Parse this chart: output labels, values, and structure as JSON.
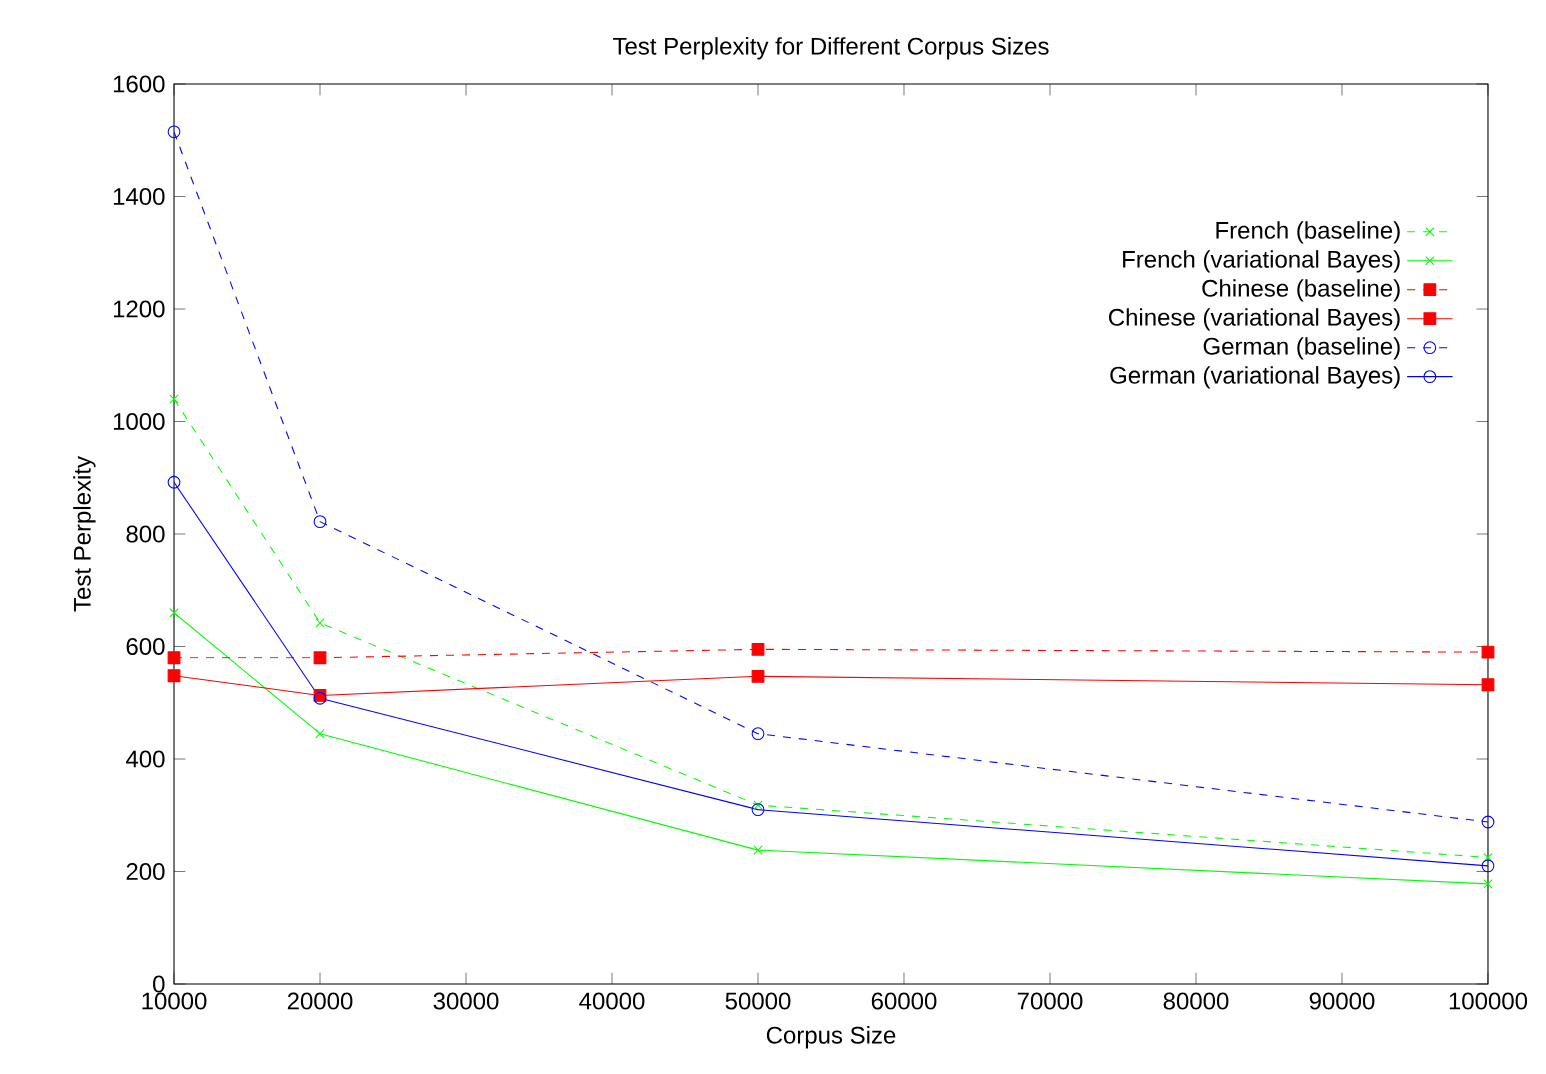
{
  "chart_data": {
    "type": "line",
    "title": "Test Perplexity for Different Corpus Sizes",
    "xlabel": "Corpus Size",
    "ylabel": "Test Perplexity",
    "x": [
      10000,
      20000,
      50000,
      100000
    ],
    "series": [
      {
        "name": "French (baseline)",
        "color": "#00ff00",
        "marker": "cross",
        "line_style": "dashed",
        "values": [
          1040,
          642,
          318,
          225
        ]
      },
      {
        "name": "French (variational Bayes)",
        "color": "#00ff00",
        "marker": "cross",
        "line_style": "solid",
        "values": [
          660,
          445,
          238,
          178
        ]
      },
      {
        "name": "Chinese (baseline)",
        "color": "#ff0000",
        "marker": "square",
        "line_style": "dashed",
        "values": [
          580,
          580,
          595,
          590
        ]
      },
      {
        "name": "Chinese (variational Bayes)",
        "color": "#ff0000",
        "marker": "square",
        "line_style": "solid",
        "values": [
          548,
          513,
          547,
          532
        ]
      },
      {
        "name": "German (baseline)",
        "color": "#0000ff",
        "marker": "circle",
        "line_style": "dashed",
        "values": [
          1515,
          822,
          445,
          288
        ]
      },
      {
        "name": "German (variational Bayes)",
        "color": "#0000ff",
        "marker": "circle",
        "line_style": "solid",
        "values": [
          892,
          508,
          310,
          210
        ]
      }
    ],
    "xlim": [
      10000,
      100000
    ],
    "ylim": [
      0,
      1600
    ],
    "xticks": [
      10000,
      20000,
      30000,
      40000,
      50000,
      60000,
      70000,
      80000,
      90000,
      100000
    ],
    "yticks": [
      0,
      200,
      400,
      600,
      800,
      1000,
      1200,
      1400,
      1600
    ],
    "legend": "top right",
    "grid": false
  }
}
